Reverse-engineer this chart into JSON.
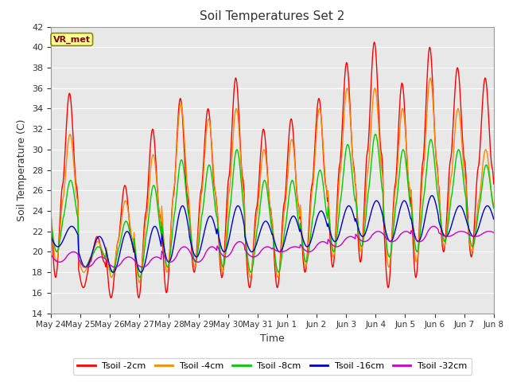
{
  "title": "Soil Temperatures Set 2",
  "xlabel": "Time",
  "ylabel": "Soil Temperature (C)",
  "ylim": [
    14,
    42
  ],
  "yticks": [
    14,
    16,
    18,
    20,
    22,
    24,
    26,
    28,
    30,
    32,
    34,
    36,
    38,
    40,
    42
  ],
  "fig_bg": "#ffffff",
  "plot_bg": "#e8e8e8",
  "series_colors": {
    "Tsoil -2cm": "#ff0000",
    "Tsoil -4cm": "#ff8800",
    "Tsoil -8cm": "#00cc00",
    "Tsoil -16cm": "#0000cc",
    "Tsoil -32cm": "#cc00cc"
  },
  "annotation_text": "VR_met",
  "annotation_color": "#880000",
  "annotation_bg": "#ffff99",
  "annotation_edge": "#888800",
  "x_tick_labels": [
    "May 24",
    "May 25",
    "May 26",
    "May 27",
    "May 28",
    "May 29",
    "May 30",
    "May 31",
    "Jun 1",
    "Jun 2",
    "Jun 3",
    "Jun 4",
    "Jun 5",
    "Jun 6",
    "Jun 7",
    "Jun 8"
  ],
  "n_days": 16,
  "pts_per_day": 48,
  "peak2": [
    35.5,
    21.5,
    26.5,
    32.0,
    35.0,
    34.0,
    37.0,
    32.0,
    33.0,
    35.0,
    38.5,
    40.5,
    36.5,
    40.0,
    38.0,
    37.0
  ],
  "trough2": [
    17.5,
    16.5,
    15.5,
    15.5,
    16.0,
    18.0,
    17.5,
    16.5,
    16.5,
    18.0,
    18.5,
    19.0,
    16.5,
    17.5,
    20.0,
    19.5
  ],
  "peak4": [
    31.5,
    21.0,
    25.0,
    29.5,
    34.5,
    33.0,
    34.0,
    30.0,
    31.0,
    34.0,
    36.0,
    36.0,
    34.0,
    37.0,
    34.0,
    30.0
  ],
  "trough4": [
    19.0,
    18.0,
    17.5,
    17.0,
    18.0,
    18.5,
    18.0,
    17.5,
    17.5,
    18.5,
    19.5,
    20.0,
    18.5,
    19.0,
    20.5,
    20.0
  ],
  "peak8": [
    27.0,
    20.5,
    23.0,
    26.5,
    29.0,
    28.5,
    30.0,
    27.0,
    27.0,
    28.0,
    30.5,
    31.5,
    30.0,
    31.0,
    30.0,
    28.5
  ],
  "trough8": [
    20.0,
    18.5,
    18.0,
    17.5,
    18.5,
    19.0,
    18.5,
    18.0,
    18.0,
    19.0,
    20.0,
    20.5,
    19.5,
    20.0,
    21.0,
    20.5
  ],
  "peak16": [
    22.5,
    21.5,
    22.0,
    22.5,
    24.5,
    23.5,
    24.5,
    23.0,
    23.5,
    24.0,
    24.5,
    25.0,
    25.0,
    25.5,
    24.5,
    24.5
  ],
  "trough16": [
    20.5,
    18.5,
    18.0,
    18.0,
    19.0,
    19.5,
    20.0,
    20.0,
    20.0,
    20.5,
    21.0,
    21.5,
    21.0,
    21.0,
    21.5,
    21.5
  ],
  "peak32": [
    20.0,
    19.5,
    19.5,
    19.5,
    20.5,
    20.5,
    21.0,
    20.5,
    20.5,
    21.0,
    21.5,
    22.0,
    22.0,
    22.5,
    22.0,
    22.0
  ],
  "trough32": [
    19.0,
    18.5,
    18.5,
    18.5,
    19.0,
    19.0,
    19.5,
    19.5,
    20.0,
    20.0,
    20.5,
    21.0,
    21.0,
    21.0,
    21.5,
    21.5
  ]
}
